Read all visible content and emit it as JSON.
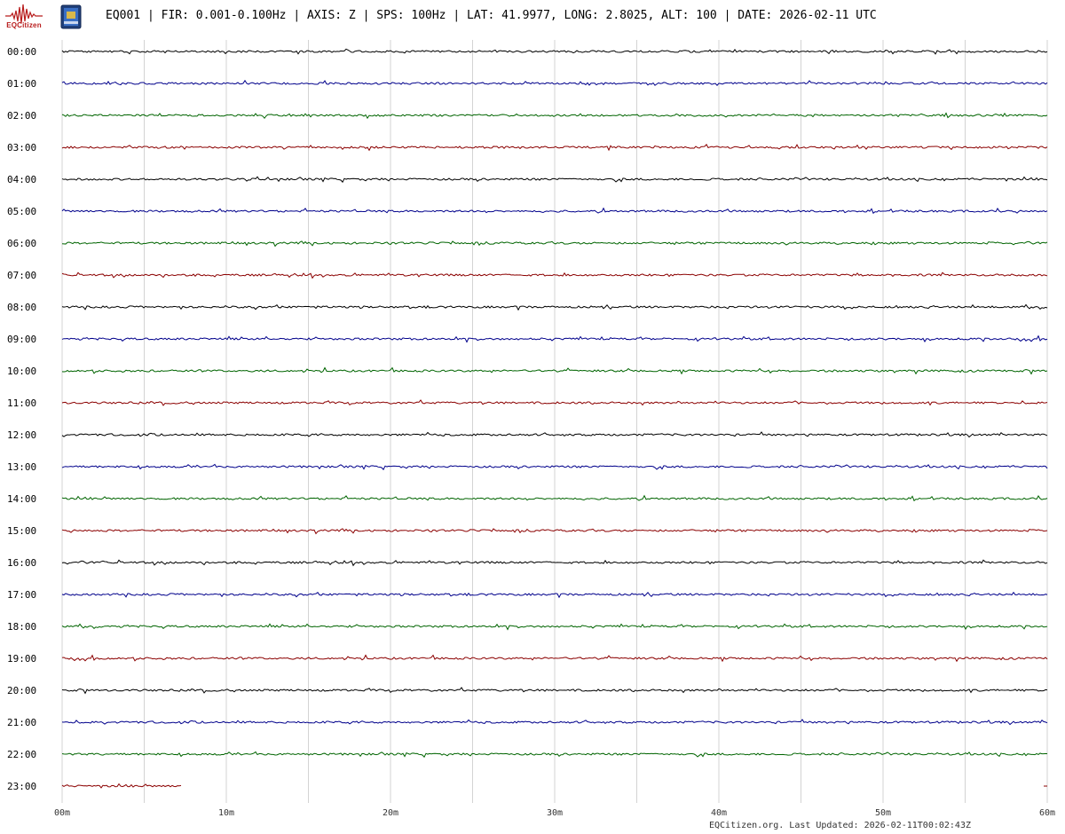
{
  "header": {
    "logo_text": "EQCitizen",
    "title": "EQ001 | FIR: 0.001-0.100Hz | AXIS: Z | SPS: 100Hz | LAT: 41.9977, LONG: 2.8025, ALT: 100 | DATE: 2026-02-11 UTC"
  },
  "footer": {
    "text": "EQCitizen.org. Last Updated: 2026-02-11T00:02:43Z"
  },
  "colors": {
    "trace_cycle": [
      "#000000",
      "#00008b",
      "#006400",
      "#8b0000"
    ],
    "grid": "#d3d3d3"
  },
  "chart_data": {
    "type": "line",
    "subtype": "helicorder",
    "rows": [
      "00:00",
      "01:00",
      "02:00",
      "03:00",
      "04:00",
      "05:00",
      "06:00",
      "07:00",
      "08:00",
      "09:00",
      "10:00",
      "11:00",
      "12:00",
      "13:00",
      "14:00",
      "15:00",
      "16:00",
      "17:00",
      "18:00",
      "19:00",
      "20:00",
      "21:00",
      "22:00",
      "23:00"
    ],
    "x_ticks": [
      "00m",
      "10m",
      "20m",
      "30m",
      "40m",
      "50m",
      "60m"
    ],
    "xlim": [
      0,
      60
    ],
    "x_unit": "minutes",
    "row_data_coverage_minutes": [
      60,
      60,
      60,
      60,
      60,
      60,
      60,
      60,
      60,
      60,
      60,
      60,
      60,
      60,
      60,
      60,
      60,
      60,
      60,
      60,
      60,
      60,
      60,
      7.3
    ],
    "grid": true,
    "grid_minor_step_minutes": 5
  }
}
